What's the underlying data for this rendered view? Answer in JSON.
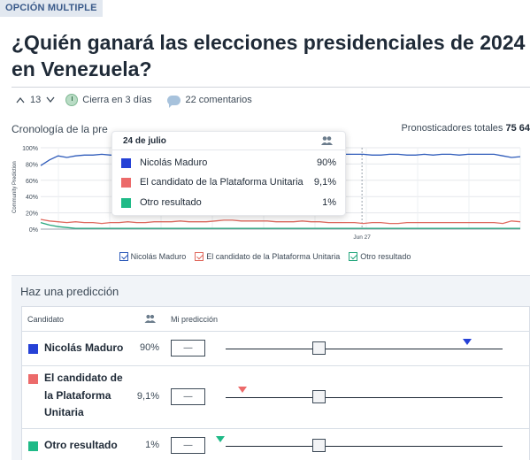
{
  "question": {
    "tag": "OPCIÓN MULTIPLE",
    "title": "¿Quién ganará las elecciones presidenciales de 2024 en Venezuela?"
  },
  "meta": {
    "votes": "13",
    "closes": "Cierra en 3 días",
    "comments": "22 comentarios"
  },
  "chart_header": {
    "label": "Cronología de la pre",
    "forecasters_label": "Pronosticadores totales",
    "forecasters_value": "75 64"
  },
  "chart_data": {
    "type": "line",
    "ylabel": "Community Prediction",
    "yticks": [
      "100%",
      "80%",
      "60%",
      "40%",
      "20%",
      "0%"
    ],
    "ylim": [
      0,
      100
    ],
    "x_annotation": "Jun 27",
    "grid": true,
    "legend_position": "bottom",
    "series": [
      {
        "name": "Nicolás Maduro",
        "color": "#2e5bba",
        "values": [
          78,
          85,
          90,
          88,
          90,
          91,
          91,
          92,
          91,
          91,
          90,
          92,
          92,
          91,
          91,
          91,
          91,
          92,
          92,
          92,
          91,
          91,
          91,
          91,
          91,
          91,
          91,
          92,
          92,
          92,
          92,
          91,
          91,
          92,
          92,
          92,
          92,
          92,
          91,
          91,
          92,
          92,
          91,
          91,
          92,
          91,
          92,
          92,
          91,
          92,
          92,
          92,
          92,
          90,
          88,
          89
        ]
      },
      {
        "name": "El candidato de la Plataforma Unitaria",
        "color": "#e06a5f",
        "values": [
          12,
          10,
          9,
          8,
          9,
          8,
          8,
          7,
          8,
          8,
          9,
          8,
          8,
          9,
          9,
          9,
          10,
          9,
          9,
          9,
          10,
          11,
          11,
          10,
          10,
          10,
          10,
          9,
          9,
          9,
          10,
          9,
          9,
          8,
          8,
          8,
          8,
          7,
          8,
          8,
          7,
          7,
          8,
          8,
          8,
          8,
          8,
          8,
          8,
          8,
          8,
          8,
          8,
          7,
          10,
          9
        ]
      },
      {
        "name": "Otro resultado",
        "color": "#27a77e",
        "values": [
          8,
          5,
          3,
          2,
          1,
          1,
          1,
          1,
          1,
          1,
          1,
          1,
          1,
          1,
          1,
          1,
          1,
          1,
          1,
          1,
          1,
          1,
          1,
          1,
          1,
          1,
          1,
          1,
          1,
          1,
          1,
          1,
          1,
          1,
          1,
          1,
          1,
          1,
          1,
          1,
          1,
          1,
          1,
          1,
          1,
          1,
          1,
          1,
          1,
          1,
          1,
          1,
          1,
          1,
          1,
          1
        ]
      }
    ]
  },
  "tooltip": {
    "date": "24 de julio",
    "rows": [
      {
        "name": "Nicolás Maduro",
        "value": "90%",
        "color": "#2541d6"
      },
      {
        "name": "El candidato de la Plataforma Unitaria",
        "value": "9,1%",
        "color": "#ec6a6a"
      },
      {
        "name": "Otro resultado",
        "value": "1%",
        "color": "#1fba87"
      }
    ]
  },
  "legend": [
    {
      "label": "Nicolás Maduro",
      "color": "#2e5bba"
    },
    {
      "label": "El candidato de la Plataforma Unitaria",
      "color": "#e06a5f"
    },
    {
      "label": "Otro resultado",
      "color": "#27a77e"
    }
  ],
  "prediction": {
    "title": "Haz una predicción",
    "col_candidate": "Candidato",
    "col_mine": "Mi predicción",
    "rows": [
      {
        "name": "Nicolás Maduro",
        "pct": "90%",
        "input": "—",
        "color": "#2541d6",
        "community": 0.9
      },
      {
        "name": "El candidato de la Plataforma Unitaria",
        "name_lines": [
          "El candidato de",
          "la Plataforma",
          "Unitaria"
        ],
        "pct": "9,1%",
        "input": "—",
        "color": "#ec6a6a",
        "community": 0.091
      },
      {
        "name": "Otro resultado",
        "pct": "1%",
        "input": "—",
        "color": "#1fba87",
        "community": 0.01
      }
    ]
  }
}
